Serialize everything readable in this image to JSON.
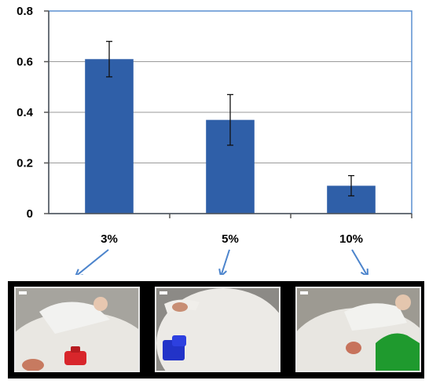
{
  "chart_data": {
    "type": "bar",
    "title": "",
    "xlabel": "",
    "ylabel": "",
    "categories": [
      "3%",
      "5%",
      "10%"
    ],
    "values": [
      0.61,
      0.37,
      0.11
    ],
    "error": [
      0.07,
      0.1,
      0.04
    ],
    "ylim": [
      0,
      0.8
    ],
    "yticks": [
      "0",
      "0.2",
      "0.4",
      "0.6",
      "0.8"
    ],
    "ytick_values": [
      0,
      0.2,
      0.4,
      0.6,
      0.8
    ],
    "grid": true,
    "legend": "none",
    "bar_color": "#2f5fa8"
  },
  "photos": [
    {
      "category": "3%",
      "object_color": "#d8262b",
      "description_icon": "red-block-photo"
    },
    {
      "category": "5%",
      "object_color": "#2233c8",
      "description_icon": "blue-block-photo"
    },
    {
      "category": "10%",
      "object_color": "#1f9a2e",
      "description_icon": "green-block-photo"
    }
  ]
}
